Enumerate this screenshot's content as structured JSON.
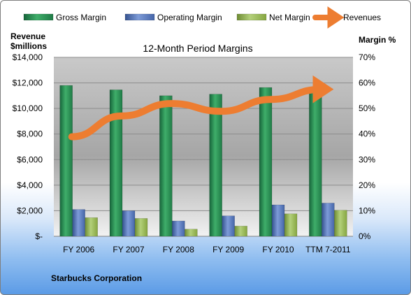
{
  "chart_data": {
    "type": "bar",
    "title": "12-Month Period Margins",
    "footer": "Starbucks Corporation",
    "categories": [
      "FY 2006",
      "FY 2007",
      "FY 2008",
      "FY 2009",
      "FY 2010",
      "TTM 7-2011"
    ],
    "left_axis": {
      "label_line1": "Revenue",
      "label_line2": "$millions",
      "ylim": [
        0,
        14000
      ],
      "ticks": [
        0,
        2000,
        4000,
        6000,
        8000,
        10000,
        12000,
        14000
      ],
      "tick_labels": [
        "$-",
        "$2,000",
        "$4,000",
        "$6,000",
        "$8,000",
        "$10,000",
        "$12,000",
        "$14,000"
      ]
    },
    "right_axis": {
      "label": "Margin %",
      "ylim": [
        0,
        70
      ],
      "ticks": [
        0,
        10,
        20,
        30,
        40,
        50,
        60,
        70
      ],
      "tick_labels": [
        "0%",
        "10%",
        "20%",
        "30%",
        "40%",
        "50%",
        "60%",
        "70%"
      ]
    },
    "series": [
      {
        "name": "Gross Margin",
        "axis": "right",
        "type": "bar",
        "color": "#2e8b57",
        "values": [
          59,
          57.3,
          55,
          55.6,
          58.2,
          57.6
        ]
      },
      {
        "name": "Operating Margin",
        "axis": "right",
        "type": "bar",
        "color": "#4f6fb5",
        "values": [
          10.5,
          10,
          6,
          8,
          12.3,
          13
        ]
      },
      {
        "name": "Net Margin",
        "axis": "right",
        "type": "bar",
        "color": "#8fb04a",
        "values": [
          7.3,
          7,
          2.8,
          4,
          8.8,
          10.2
        ]
      },
      {
        "name": "Revenues",
        "axis": "left",
        "type": "line",
        "color": "#ed7d31",
        "values": [
          7787,
          9411,
          10383,
          9775,
          10707,
          11500
        ]
      }
    ],
    "legend_position": "top",
    "grid": true
  }
}
